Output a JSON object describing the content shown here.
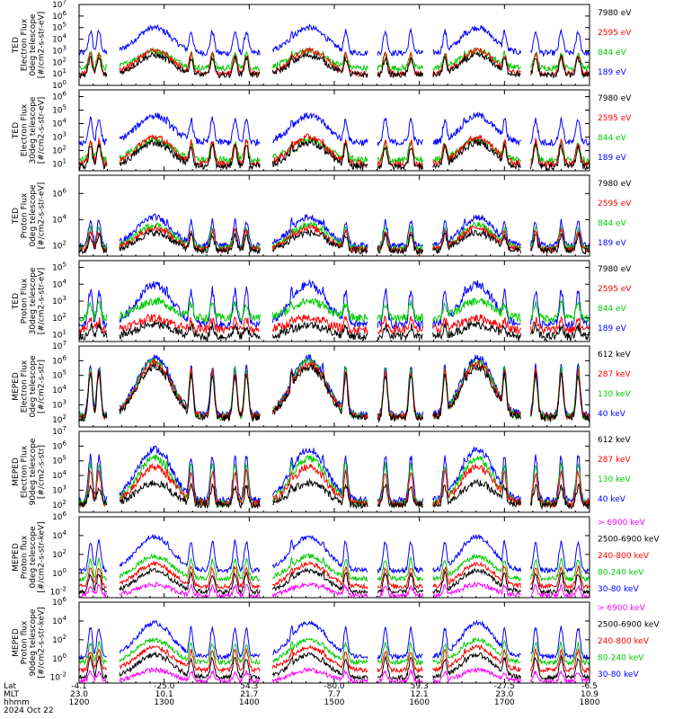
{
  "figure": {
    "footer": {
      "row_labels": [
        "Lat",
        "MLT",
        "hhmm",
        "2024 Oct 22"
      ],
      "ticks": [
        {
          "lat": "-4.1",
          "mlt": "23.0",
          "hhmm": "1200"
        },
        {
          "lat": "-25.0",
          "mlt": "10.1",
          "hhmm": "1300"
        },
        {
          "lat": "54.3",
          "mlt": "21.7",
          "hhmm": "1400"
        },
        {
          "lat": "-80.0",
          "mlt": "7.7",
          "hhmm": "1500"
        },
        {
          "lat": "59.3",
          "mlt": "12.1",
          "hhmm": "1600"
        },
        {
          "lat": "-27.5",
          "mlt": "23.0",
          "hhmm": "1700"
        },
        {
          "lat": "-6.5",
          "mlt": "10.9",
          "hhmm": "1800"
        }
      ]
    }
  },
  "chart_data": [
    {
      "type": "line",
      "ylabel": [
        "TED",
        "Electron Flux",
        "0deg telescope",
        "[#/cm2-s-str-eV]"
      ],
      "y_ticks": [
        {
          "exp": 7
        },
        {
          "exp": 6
        },
        {
          "exp": 5
        },
        {
          "exp": 4
        },
        {
          "exp": 3
        },
        {
          "exp": 2
        },
        {
          "exp": 1
        },
        {
          "exp": 0
        }
      ],
      "ylim": [
        0,
        7
      ],
      "y_scale": "log",
      "series": [
        {
          "name": "7980 eV",
          "color": "#000000",
          "base": 0.9,
          "peak": 2.6
        },
        {
          "name": "2595 eV",
          "color": "#ff0000",
          "base": 1.0,
          "peak": 3.0
        },
        {
          "name": "844 eV",
          "color": "#00cc00",
          "base": 1.5,
          "peak": 3.0
        },
        {
          "name": "189 eV",
          "color": "#0000ff",
          "base": 2.8,
          "peak": 5.0
        }
      ]
    },
    {
      "type": "line",
      "ylabel": [
        "TED",
        "Electron Flux",
        "30deg telescope",
        "[#/cm2-s-str-eV]"
      ],
      "y_ticks": [
        {
          "exp": 6
        },
        {
          "exp": 5
        },
        {
          "exp": 4
        },
        {
          "exp": 3
        },
        {
          "exp": 2
        },
        {
          "exp": 1
        }
      ],
      "ylim": [
        0.5,
        6.5
      ],
      "y_scale": "log",
      "series": [
        {
          "name": "7980 eV",
          "color": "#000000",
          "base": 0.8,
          "peak": 2.6
        },
        {
          "name": "2595 eV",
          "color": "#ff0000",
          "base": 1.0,
          "peak": 3.0
        },
        {
          "name": "844 eV",
          "color": "#00cc00",
          "base": 1.3,
          "peak": 2.8
        },
        {
          "name": "189 eV",
          "color": "#0000ff",
          "base": 2.6,
          "peak": 4.6
        }
      ]
    },
    {
      "type": "line",
      "ylabel": [
        "TED",
        "Proton Flux",
        "0deg telescope",
        "[#/cm2-s-str-eV]"
      ],
      "y_ticks": [
        {
          "exp": 6
        },
        {
          "exp": 4
        },
        {
          "exp": 2
        }
      ],
      "ylim": [
        1.2,
        7.4
      ],
      "y_scale": "log",
      "series": [
        {
          "name": "7980 eV",
          "color": "#000000",
          "base": 1.6,
          "peak": 3.0
        },
        {
          "name": "2595 eV",
          "color": "#ff0000",
          "base": 1.7,
          "peak": 3.4
        },
        {
          "name": "844 eV",
          "color": "#00cc00",
          "base": 1.8,
          "peak": 3.6
        },
        {
          "name": "189 eV",
          "color": "#0000ff",
          "base": 2.0,
          "peak": 4.2
        }
      ]
    },
    {
      "type": "line",
      "ylabel": [
        "TED",
        "Proton Flux",
        "30deg telescope",
        "[#/cm2-s-str-eV]"
      ],
      "y_ticks": [
        {
          "exp": 5
        },
        {
          "exp": 4
        },
        {
          "exp": 3
        },
        {
          "exp": 2
        },
        {
          "exp": 1
        }
      ],
      "ylim": [
        0.6,
        5.4
      ],
      "y_scale": "log",
      "series": [
        {
          "name": "7980 eV",
          "color": "#000000",
          "base": 0.9,
          "peak": 1.6
        },
        {
          "name": "2595 eV",
          "color": "#ff0000",
          "base": 1.3,
          "peak": 2.0
        },
        {
          "name": "844 eV",
          "color": "#00cc00",
          "base": 2.0,
          "peak": 3.0
        },
        {
          "name": "189 eV",
          "color": "#0000ff",
          "base": 1.6,
          "peak": 4.0
        }
      ]
    },
    {
      "type": "line",
      "ylabel": [
        "MEPED",
        "Electron Flux",
        "0deg telescope",
        "[#/cm2-s-str]"
      ],
      "y_ticks": [
        {
          "exp": 7
        },
        {
          "exp": 6
        },
        {
          "exp": 5
        },
        {
          "exp": 4
        },
        {
          "exp": 3
        },
        {
          "exp": 2
        }
      ],
      "ylim": [
        1.5,
        7.0
      ],
      "y_scale": "log",
      "series": [
        {
          "name": "612 keV",
          "color": "#000000",
          "base": 2.1,
          "peak": 5.6
        },
        {
          "name": "287 keV",
          "color": "#ff0000",
          "base": 2.2,
          "peak": 5.8
        },
        {
          "name": "130 keV",
          "color": "#00cc00",
          "base": 2.2,
          "peak": 6.0
        },
        {
          "name": "40 keV",
          "color": "#0000ff",
          "base": 2.3,
          "peak": 6.2
        }
      ]
    },
    {
      "type": "line",
      "ylabel": [
        "MEPED",
        "Electron Flux",
        "90deg telescope",
        "[#/cm2-s-str]"
      ],
      "y_ticks": [
        {
          "exp": 7
        },
        {
          "exp": 6
        },
        {
          "exp": 5
        },
        {
          "exp": 4
        },
        {
          "exp": 3
        },
        {
          "exp": 2
        }
      ],
      "ylim": [
        1.5,
        7.0
      ],
      "y_scale": "log",
      "series": [
        {
          "name": "612 keV",
          "color": "#000000",
          "base": 2.0,
          "peak": 3.5
        },
        {
          "name": "287 keV",
          "color": "#ff0000",
          "base": 2.1,
          "peak": 4.6
        },
        {
          "name": "130 keV",
          "color": "#00cc00",
          "base": 2.1,
          "peak": 5.2
        },
        {
          "name": "40 keV",
          "color": "#0000ff",
          "base": 2.3,
          "peak": 5.8
        }
      ]
    },
    {
      "type": "line",
      "ylabel": [
        "MEPED",
        "Proton flux",
        "0deg telescope",
        "[#/cm2-s-str-keV]"
      ],
      "y_ticks": [
        {
          "exp": 6
        },
        {
          "exp": 4
        },
        {
          "exp": 2
        },
        {
          "exp": 0
        },
        {
          "exp": -2
        }
      ],
      "ylim": [
        -2.6,
        6.0
      ],
      "y_scale": "log",
      "series": [
        {
          "name": "> 6900 keV",
          "color": "#ff00ff",
          "base": -2.4,
          "peak": -1.2
        },
        {
          "name": "2500-6900 keV",
          "color": "#000000",
          "base": -2.0,
          "peak": 0.3
        },
        {
          "name": "240-800 keV",
          "color": "#ff0000",
          "base": -1.4,
          "peak": 1.0
        },
        {
          "name": "80-240 keV",
          "color": "#00cc00",
          "base": -0.6,
          "peak": 1.8
        },
        {
          "name": "30-80 keV",
          "color": "#0000ff",
          "base": 0.3,
          "peak": 3.9
        }
      ]
    },
    {
      "type": "line",
      "ylabel": [
        "MEPED",
        "Proton flux",
        "90deg telescope",
        "[#/cm2-s-str-keV]"
      ],
      "y_ticks": [
        {
          "exp": 6
        },
        {
          "exp": 4
        },
        {
          "exp": 2
        },
        {
          "exp": 0
        },
        {
          "exp": -2
        }
      ],
      "ylim": [
        -2.6,
        6.0
      ],
      "y_scale": "log",
      "series": [
        {
          "name": "> 6900 keV",
          "color": "#ff00ff",
          "base": -2.4,
          "peak": -1.2
        },
        {
          "name": "2500-6900 keV",
          "color": "#000000",
          "base": -2.0,
          "peak": 0.4
        },
        {
          "name": "240-800 keV",
          "color": "#ff0000",
          "base": -1.2,
          "peak": 1.2
        },
        {
          "name": "80-240 keV",
          "color": "#00cc00",
          "base": -0.4,
          "peak": 2.0
        },
        {
          "name": "30-80 keV",
          "color": "#0000ff",
          "base": 0.2,
          "peak": 3.8
        }
      ]
    }
  ]
}
